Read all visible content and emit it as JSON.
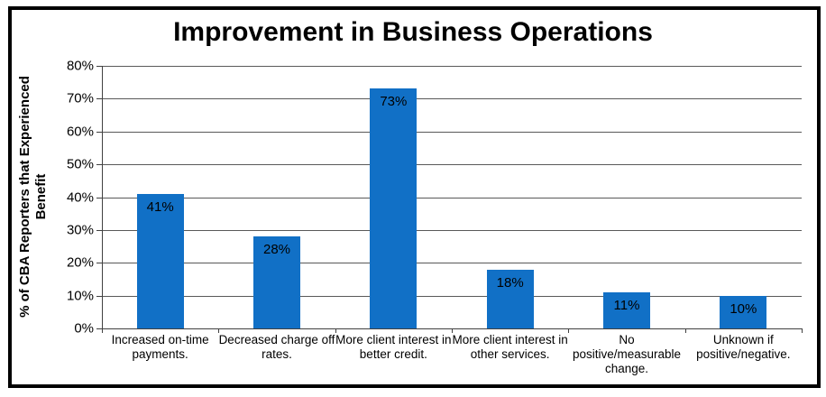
{
  "chart": {
    "title": "Improvement in Business Operations",
    "y_axis_title_lines": [
      "% of CBA Reporters that Experienced",
      "Benefit"
    ]
  },
  "colors": {
    "bar": "#1170C6",
    "gridline": "#595959",
    "axis": "#404040",
    "frame_border": "#000000",
    "background": "#FFFFFF",
    "text": "#000000"
  },
  "chart_data": {
    "type": "bar",
    "title": "Improvement in Business Operations",
    "xlabel": "",
    "ylabel": "% of CBA Reporters that Experienced Benefit",
    "ylim": [
      0,
      80
    ],
    "ytick_step": 10,
    "ytick_labels": [
      "0%",
      "10%",
      "20%",
      "30%",
      "40%",
      "50%",
      "60%",
      "70%",
      "80%"
    ],
    "grid": true,
    "legend": false,
    "categories": [
      "Increased on-time payments.",
      "Decreased charge off rates.",
      "More client interest in better credit.",
      "More client interest in other services.",
      "No positive/measurable change.",
      "Unknown if positive/negative."
    ],
    "category_label_lines": [
      [
        "Increased on-time",
        "payments."
      ],
      [
        "Decreased charge off",
        "rates."
      ],
      [
        "More client interest in",
        "better credit."
      ],
      [
        "More client interest in",
        "other services."
      ],
      [
        "No",
        "positive/measurable",
        "change."
      ],
      [
        "Unknown if",
        "positive/negative."
      ]
    ],
    "values": [
      41,
      28,
      73,
      18,
      11,
      10
    ],
    "data_labels": [
      "41%",
      "28%",
      "73%",
      "18%",
      "11%",
      "10%"
    ]
  }
}
